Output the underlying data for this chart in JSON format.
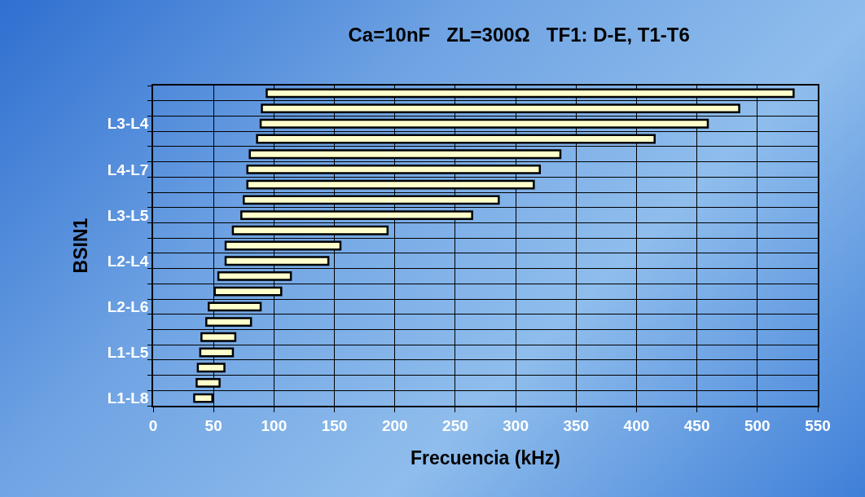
{
  "chart_data": {
    "type": "bar",
    "orientation": "horizontal",
    "title": "Ca=10nF   ZL=300Ω   TF1: D-E, T1-T6",
    "xlabel": "Frecuencia (kHz)",
    "ylabel": "BSIN1",
    "categories": [
      null,
      null,
      "L3-L4",
      null,
      null,
      "L4-L7",
      null,
      null,
      "L3-L5",
      null,
      null,
      "L2-L4",
      null,
      null,
      "L2-L6",
      null,
      null,
      "L1-L5",
      null,
      null,
      "L1-L8"
    ],
    "base": [
      94,
      90,
      89,
      86,
      80,
      78,
      78,
      75,
      73,
      66,
      60,
      60,
      54,
      51,
      46,
      44,
      40,
      39,
      37,
      36,
      34
    ],
    "values": [
      436,
      395,
      370,
      329,
      257,
      242,
      237,
      211,
      191,
      128,
      95,
      85,
      60,
      55,
      43,
      37,
      28,
      27,
      22,
      19,
      15
    ],
    "color": "#ffffcc",
    "xlim": [
      0,
      550
    ],
    "xticks": [
      0,
      50,
      100,
      150,
      200,
      250,
      300,
      350,
      400,
      450,
      500,
      550
    ],
    "grid": true
  }
}
